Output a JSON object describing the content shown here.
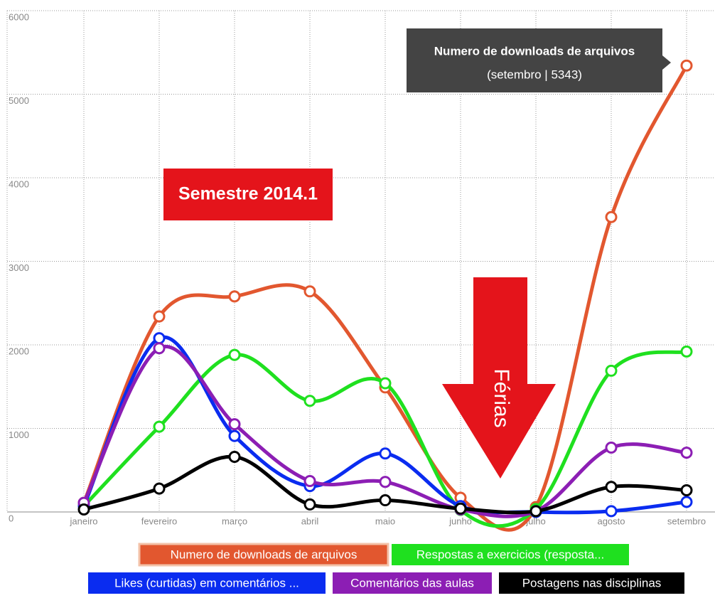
{
  "chart_data": {
    "type": "line",
    "categories": [
      "janeiro",
      "fevereiro",
      "março",
      "abril",
      "maio",
      "junho",
      "julho",
      "agosto",
      "setembro"
    ],
    "series": [
      {
        "name": "Numero de downloads de arquivos",
        "color": "#e2572f",
        "values": [
          110,
          2340,
          2580,
          2640,
          1490,
          170,
          60,
          3530,
          5343
        ]
      },
      {
        "name": "Respostas a exercicios (resposta...",
        "color": "#1fe01f",
        "values": [
          70,
          1020,
          1880,
          1330,
          1540,
          25,
          35,
          1690,
          1920
        ]
      },
      {
        "name": "Likes (curtidas) em comentários ...",
        "color": "#0a2cf0",
        "values": [
          70,
          2080,
          910,
          310,
          700,
          70,
          0,
          10,
          120
        ]
      },
      {
        "name": "Comentários das aulas",
        "color": "#8c1eb4",
        "values": [
          110,
          1960,
          1050,
          370,
          360,
          30,
          10,
          770,
          710
        ]
      },
      {
        "name": "Postagens nas disciplinas",
        "color": "#000000",
        "values": [
          30,
          280,
          660,
          90,
          140,
          40,
          10,
          300,
          260
        ]
      }
    ],
    "ylim": [
      0,
      6000
    ],
    "yticks": [
      0,
      1000,
      2000,
      3000,
      4000,
      5000,
      6000
    ],
    "grid": true,
    "tooltip": {
      "title": "Numero de downloads de arquivos",
      "text": "(setembro | 5343)"
    },
    "annotations": [
      "Semestre 2014.1",
      "Férias"
    ]
  }
}
